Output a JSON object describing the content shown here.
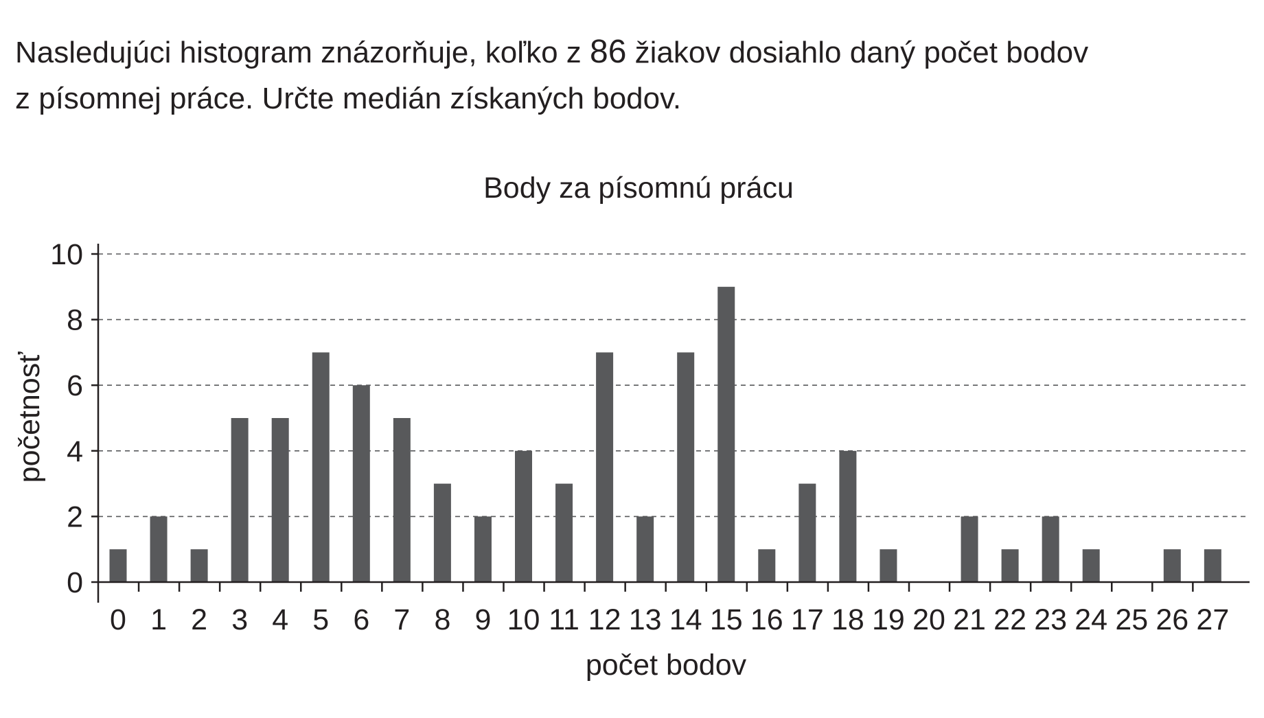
{
  "question": {
    "line1_before": "Nasledujúci histogram znázorňuje, koľko z",
    "number": "86",
    "line1_after": "žiakov dosiahlo daný počet bodov",
    "line2": "z písomnej práce. Určte medián získaných bodov."
  },
  "chart_data": {
    "type": "bar",
    "title": "Body za písomnú prácu",
    "xlabel": "počet bodov",
    "ylabel": "početnosť",
    "categories": [
      "0",
      "1",
      "2",
      "3",
      "4",
      "5",
      "6",
      "7",
      "8",
      "9",
      "10",
      "11",
      "12",
      "13",
      "14",
      "15",
      "16",
      "17",
      "18",
      "19",
      "20",
      "21",
      "22",
      "23",
      "24",
      "25",
      "26",
      "27"
    ],
    "values": [
      1,
      2,
      1,
      5,
      5,
      7,
      6,
      5,
      3,
      2,
      4,
      3,
      7,
      2,
      7,
      9,
      1,
      3,
      4,
      1,
      0,
      2,
      1,
      2,
      1,
      0,
      1,
      1
    ],
    "ylim": [
      0,
      10
    ],
    "yticks": [
      0,
      2,
      4,
      6,
      8,
      10
    ],
    "grid": "horizontal dashed",
    "bar_color": "#58595b",
    "text_color": "#231f20"
  }
}
